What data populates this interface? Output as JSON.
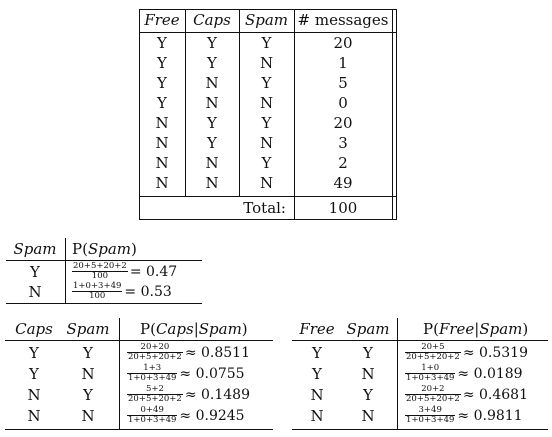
{
  "main_table": {
    "headers": [
      "Free",
      "Caps",
      "Spam",
      "# messages"
    ],
    "rows": [
      [
        "Y",
        "Y",
        "Y",
        "20"
      ],
      [
        "Y",
        "Y",
        "N",
        "1"
      ],
      [
        "Y",
        "N",
        "Y",
        "5"
      ],
      [
        "Y",
        "N",
        "N",
        "0"
      ],
      [
        "N",
        "Y",
        "Y",
        "20"
      ],
      [
        "N",
        "Y",
        "N",
        "3"
      ],
      [
        "N",
        "N",
        "Y",
        "2"
      ],
      [
        "N",
        "N",
        "N",
        "49"
      ]
    ],
    "total_label": "Total:",
    "total_value": "100"
  },
  "prior_table": {
    "headers": [
      "Spam",
      "P(",
      "Spam",
      ")"
    ],
    "rows": [
      {
        "spam": "Y",
        "num": "20+5+20+2",
        "den": "100",
        "result": "= 0.47"
      },
      {
        "spam": "N",
        "num": "1+0+3+49",
        "den": "100",
        "result": "= 0.53"
      }
    ]
  },
  "caps_table": {
    "headers": [
      "Caps",
      "Spam",
      "P(",
      "Caps",
      "|",
      "Spam",
      ")"
    ],
    "rows": [
      {
        "caps": "Y",
        "spam": "Y",
        "num": "20+20",
        "den": "20+5+20+2",
        "result": "≈ 0.8511"
      },
      {
        "caps": "Y",
        "spam": "N",
        "num": "1+3",
        "den": "1+0+3+49",
        "result": "≈ 0.0755"
      },
      {
        "caps": "N",
        "spam": "Y",
        "num": "5+2",
        "den": "20+5+20+2",
        "result": "≈ 0.1489"
      },
      {
        "caps": "N",
        "spam": "N",
        "num": "0+49",
        "den": "1+0+3+49",
        "result": "≈ 0.9245"
      }
    ]
  },
  "free_table": {
    "headers": [
      "Free",
      "Spam",
      "P(",
      "Free",
      "|",
      "Spam",
      ")"
    ],
    "rows": [
      {
        "free": "Y",
        "spam": "Y",
        "num": "20+5",
        "den": "20+5+20+2",
        "result": "≈ 0.5319"
      },
      {
        "free": "Y",
        "spam": "N",
        "num": "1+0",
        "den": "1+0+3+49",
        "result": "≈ 0.0189"
      },
      {
        "free": "N",
        "spam": "Y",
        "num": "20+2",
        "den": "20+5+20+2",
        "result": "≈ 0.4681"
      },
      {
        "free": "N",
        "spam": "N",
        "num": "3+49",
        "den": "1+0+3+49",
        "result": "≈ 0.9811"
      }
    ]
  }
}
